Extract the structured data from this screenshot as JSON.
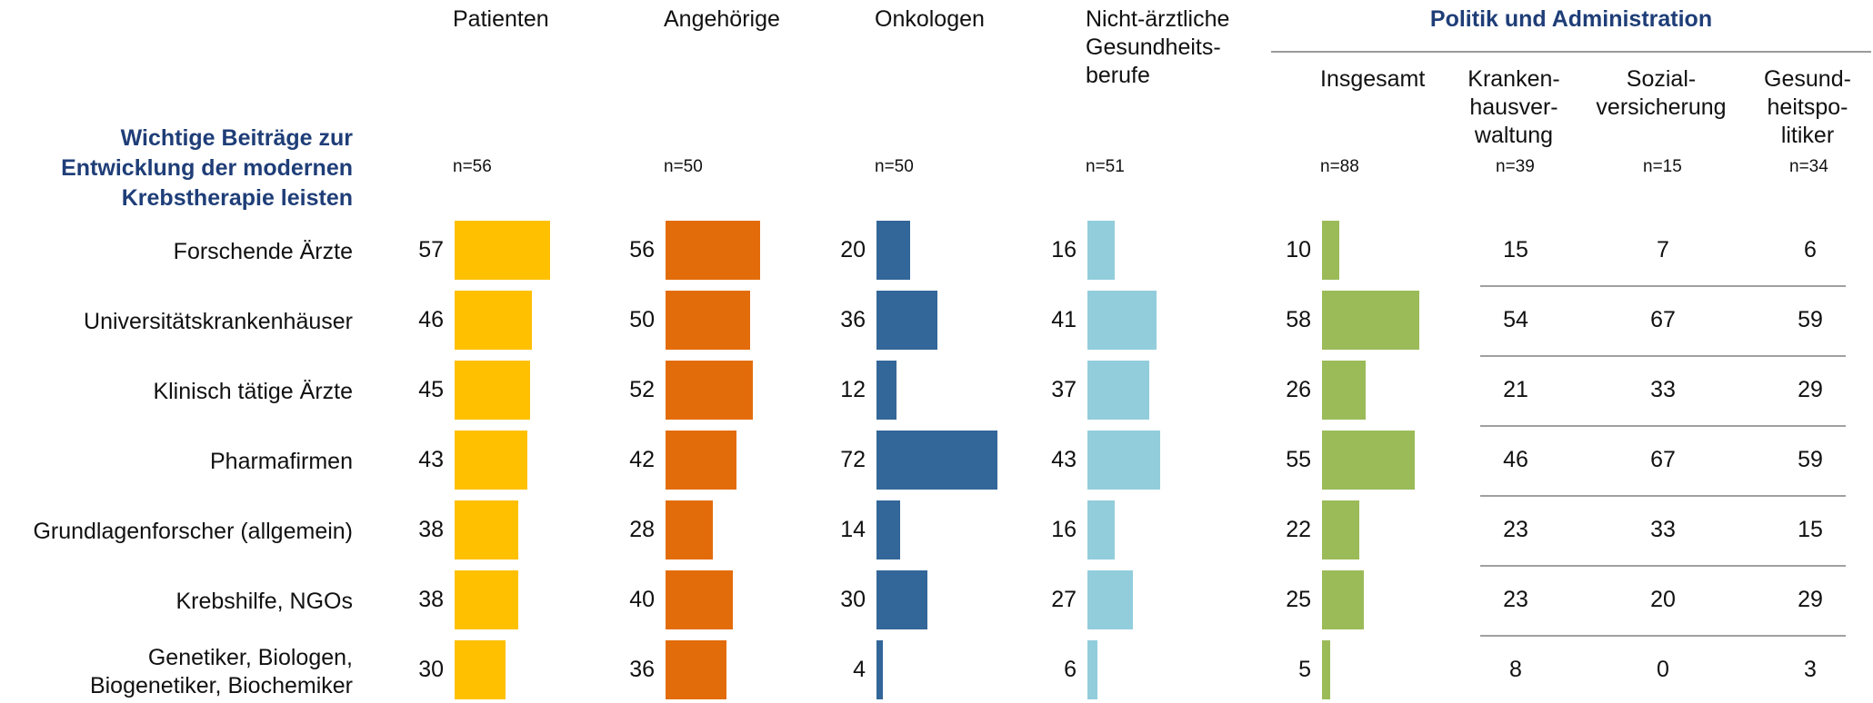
{
  "header": {
    "question": "Wichtige Beiträge zur\nEntwicklung der modernen\nKrebstherapie leisten",
    "politik_title": "Politik und Administration"
  },
  "columns": [
    {
      "key": "patienten",
      "label": "Patienten",
      "n": "n=56",
      "color": "#FFC000"
    },
    {
      "key": "angehoerige",
      "label": "Angehörige",
      "n": "n=50",
      "color": "#E36C0A"
    },
    {
      "key": "onkologen",
      "label": "Onkologen",
      "n": "n=50",
      "color": "#336699"
    },
    {
      "key": "nichtaerztlich",
      "label": "Nicht-ärztliche\nGesundheits-\nberufe",
      "n": "n=51",
      "color": "#92CDDC"
    },
    {
      "key": "insgesamt",
      "label": "Insgesamt",
      "n": "n=88",
      "color": "#9BBB59"
    }
  ],
  "sub_columns": [
    {
      "key": "krankenhaus",
      "label": "Kranken-\nhausver-\nwaltung",
      "n": "n=39"
    },
    {
      "key": "sozial",
      "label": "Sozial-\nversicherung",
      "n": "n=15"
    },
    {
      "key": "gesundheitspol",
      "label": "Gesund-\nheitspo-\nlitiker",
      "n": "n=34"
    }
  ],
  "chart_data": {
    "type": "bar",
    "orientation": "horizontal",
    "xlim": [
      0,
      100
    ],
    "categories": [
      "Forschende Ärzte",
      "Universitätskrankenhäuser",
      "Klinisch tätige Ärzte",
      "Pharmafirmen",
      "Grundlagenforscher (allgemein)",
      "Krebshilfe, NGOs",
      "Genetiker, Biologen,\nBiogenetiker, Biochemiker"
    ],
    "series": [
      {
        "name": "Patienten",
        "values": [
          57,
          46,
          45,
          43,
          38,
          38,
          30
        ]
      },
      {
        "name": "Angehörige",
        "values": [
          56,
          50,
          52,
          42,
          28,
          40,
          36
        ]
      },
      {
        "name": "Onkologen",
        "values": [
          20,
          36,
          12,
          72,
          14,
          30,
          4
        ]
      },
      {
        "name": "Nicht-ärztliche Gesundheitsberufe",
        "values": [
          16,
          41,
          37,
          43,
          16,
          27,
          6
        ]
      },
      {
        "name": "Insgesamt",
        "values": [
          10,
          58,
          26,
          55,
          22,
          25,
          5
        ]
      }
    ],
    "table_series": [
      {
        "name": "Krankenhausverwaltung",
        "values": [
          15,
          54,
          21,
          46,
          23,
          23,
          8
        ]
      },
      {
        "name": "Sozialversicherung",
        "values": [
          7,
          67,
          33,
          67,
          33,
          20,
          0
        ]
      },
      {
        "name": "Gesundheitspolitiker",
        "values": [
          6,
          59,
          29,
          59,
          15,
          29,
          3
        ]
      }
    ]
  }
}
